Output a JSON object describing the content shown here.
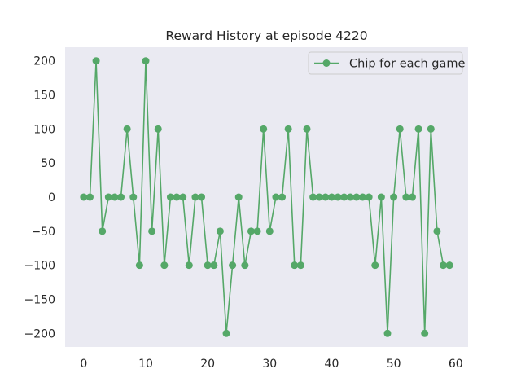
{
  "chart_data": {
    "type": "line",
    "title": "Reward History at episode 4220",
    "xlabel": "",
    "ylabel": "",
    "xlim": [
      -3,
      62
    ],
    "ylim": [
      -220,
      220
    ],
    "xticks": [
      0,
      10,
      20,
      30,
      40,
      50,
      60
    ],
    "yticks": [
      200,
      150,
      100,
      50,
      0,
      -50,
      -100,
      -150,
      -200
    ],
    "xtick_labels": [
      "0",
      "10",
      "20",
      "30",
      "40",
      "50",
      "60"
    ],
    "ytick_labels": [
      "200",
      "150",
      "100",
      "50",
      "0",
      "−50",
      "−100",
      "−150",
      "−200"
    ],
    "grid": false,
    "background": "#eaeaf2",
    "legend_position": "top-right",
    "series": [
      {
        "name": "Chip for each game",
        "color": "#55a868",
        "marker": "circle",
        "x": [
          0,
          1,
          2,
          3,
          4,
          5,
          6,
          7,
          8,
          9,
          10,
          11,
          12,
          13,
          14,
          15,
          16,
          17,
          18,
          19,
          20,
          21,
          22,
          23,
          24,
          25,
          26,
          27,
          28,
          29,
          30,
          31,
          32,
          33,
          34,
          35,
          36,
          37,
          38,
          39,
          40,
          41,
          42,
          43,
          44,
          45,
          46,
          47,
          48,
          49,
          50,
          51,
          52,
          53,
          54,
          55,
          56,
          57,
          58,
          59
        ],
        "values": [
          0,
          0,
          200,
          -50,
          0,
          0,
          0,
          100,
          0,
          -100,
          200,
          -50,
          100,
          -100,
          0,
          0,
          0,
          -100,
          0,
          0,
          -100,
          -100,
          -50,
          -200,
          -100,
          0,
          -100,
          -50,
          -50,
          100,
          -50,
          0,
          0,
          100,
          -100,
          -100,
          100,
          0,
          0,
          0,
          0,
          0,
          0,
          0,
          0,
          0,
          0,
          -100,
          0,
          -200,
          0,
          100,
          0,
          0,
          100,
          -200,
          100,
          -50,
          -100,
          -100
        ]
      }
    ]
  }
}
